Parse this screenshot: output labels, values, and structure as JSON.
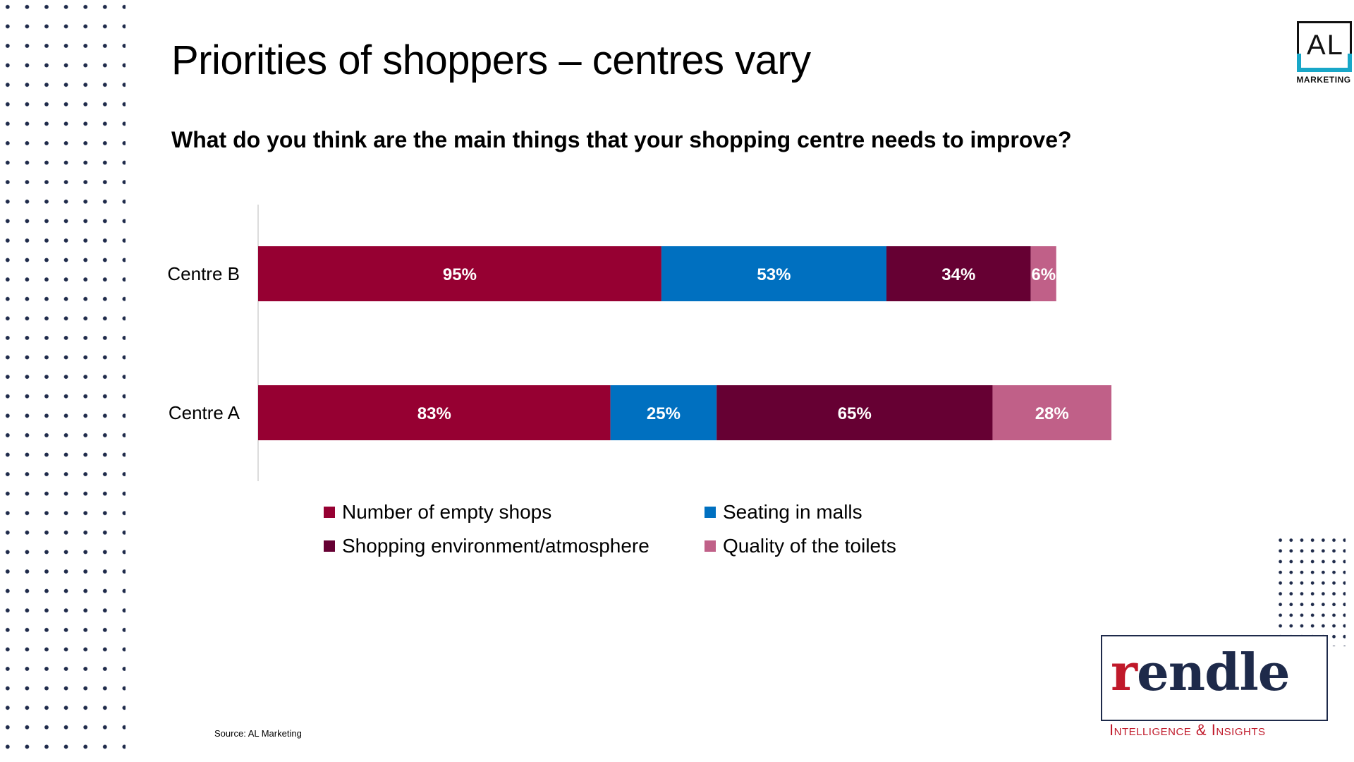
{
  "slide": {
    "title": "Priorities of shoppers – centres vary",
    "question": "What do you think are the main things that your shopping centre needs to improve?",
    "source": "Source: AL Marketing"
  },
  "logos": {
    "al": {
      "text": "AL",
      "sub": "MARKETING"
    },
    "rendle": {
      "word": "rendle",
      "tagline": "Intelligence & Insights"
    }
  },
  "chart_data": {
    "type": "bar",
    "orientation": "horizontal",
    "stacked": true,
    "categories": [
      "Centre B",
      "Centre A"
    ],
    "series": [
      {
        "name": "Number of empty shops",
        "color": "#960032",
        "values": [
          95,
          83
        ],
        "labels": [
          "95%",
          "83%"
        ]
      },
      {
        "name": "Seating in malls",
        "color": "#0070c0",
        "values": [
          53,
          25
        ],
        "labels": [
          "53%",
          "25%"
        ]
      },
      {
        "name": "Shopping environment/atmosphere",
        "color": "#660033",
        "values": [
          34,
          65
        ],
        "labels": [
          "34%",
          "65%"
        ]
      },
      {
        "name": "Quality of the toilets",
        "color": "#c06088",
        "values": [
          6,
          28
        ],
        "labels": [
          "6%",
          "28%"
        ]
      }
    ],
    "legend_position": "bottom",
    "grid": false
  }
}
